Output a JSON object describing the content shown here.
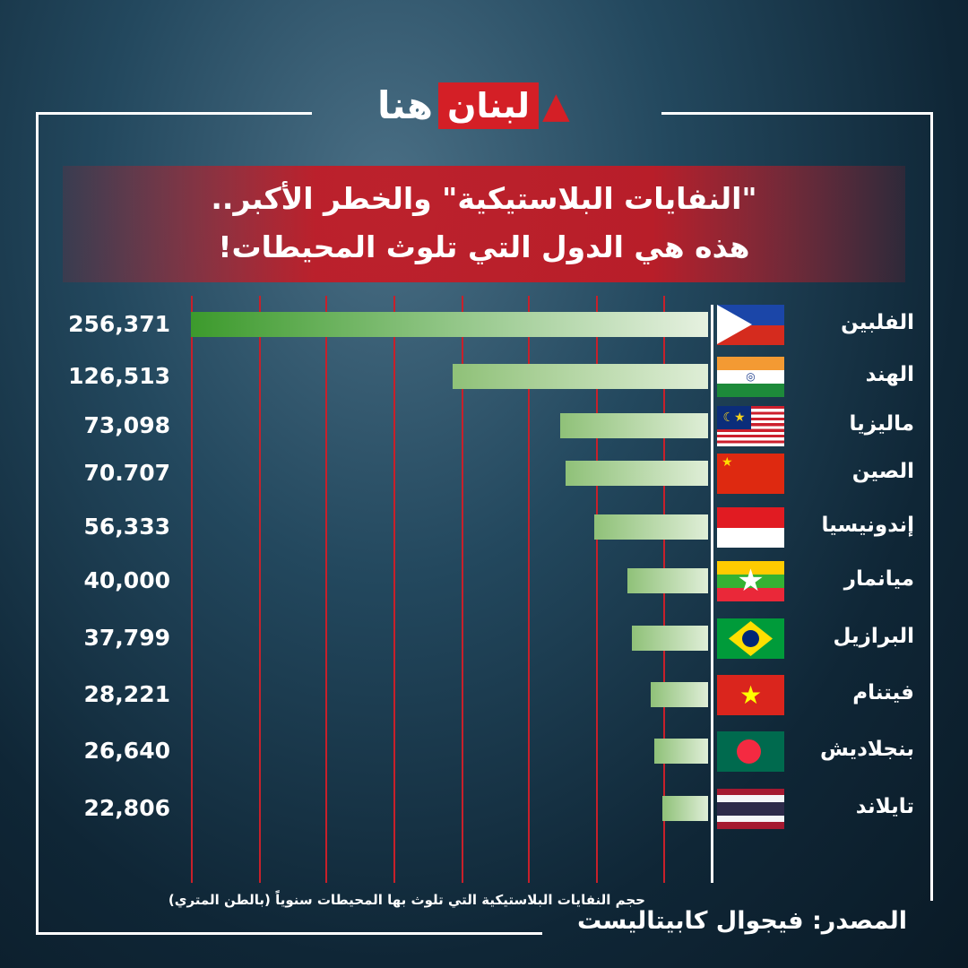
{
  "logo": {
    "red_part": "لبنان",
    "dark_part": "هنا"
  },
  "title": {
    "line1": "\"النفايات البلاستيكية\" والخطر الأكبر..",
    "line2": "هذه هي الدول التي تلوث المحيطات!"
  },
  "chart_data": {
    "type": "bar",
    "orientation": "horizontal",
    "categories": [
      "الفلبين",
      "الهند",
      "ماليزيا",
      "الصين",
      "إندونيسيا",
      "ميانمار",
      "البرازيل",
      "فيتنام",
      "بنجلاديش",
      "تايلاند"
    ],
    "values": [
      256371,
      126513,
      73098,
      70707,
      56333,
      40000,
      37799,
      28221,
      26640,
      22806
    ],
    "value_labels": [
      "256,371",
      "126,513",
      "73,098",
      "70.707",
      "56,333",
      "40,000",
      "37,799",
      "28,221",
      "26,640",
      "22,806"
    ],
    "flags": [
      "philippines-flag",
      "india-flag",
      "malaysia-flag",
      "china-flag",
      "indonesia-flag",
      "myanmar-flag",
      "brazil-flag",
      "vietnam-flag",
      "bangladesh-flag",
      "thailand-flag"
    ],
    "xlabel": "حجم النفايات البلاستيكية التي تلوث بها المحيطات سنوياً (بالطن المتري)",
    "grid": true,
    "colors": {
      "bar": "#8fc178",
      "bar_top": "#3c9a2c",
      "grid": "#c8202a",
      "banner": "#c81923"
    }
  },
  "source": "المصدر:  فيجوال كابيتاليست"
}
